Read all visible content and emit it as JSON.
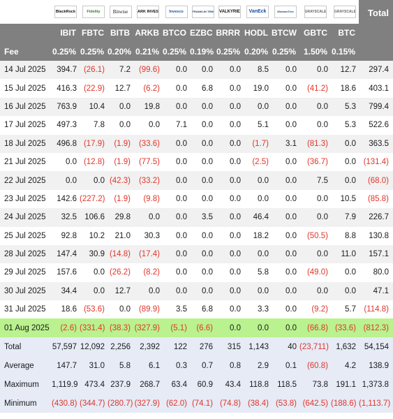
{
  "header": {
    "total_label": "Total",
    "fee_label": "Fee",
    "logos": [
      {
        "icon": "blackrock-logo",
        "text": "BlackRock"
      },
      {
        "icon": "fidelity-logo",
        "text": "Fidelity"
      },
      {
        "icon": "bitwise-logo",
        "text": "Bitwise"
      },
      {
        "icon": "ark-logo",
        "text": "ARK INVEST"
      },
      {
        "icon": "invesco-logo",
        "text": "Invesco"
      },
      {
        "icon": "franklin-templeton-logo",
        "text": "FRANKLIN TEMPLETON"
      },
      {
        "icon": "valkyrie-logo",
        "text": "VALKYRIE"
      },
      {
        "icon": "vaneck-logo",
        "text": "VanEck"
      },
      {
        "icon": "wisdomtree-logo",
        "text": "WisdomTree"
      },
      {
        "icon": "grayscale-logo",
        "text": "GRAYSCALE"
      },
      {
        "icon": "grayscale-logo",
        "text": "GRAYSCALE"
      }
    ],
    "tickers": [
      "IBIT",
      "FBTC",
      "BITB",
      "ARKB",
      "BTCO",
      "EZBC",
      "BRRR",
      "HODL",
      "BTCW",
      "GBTC",
      "BTC"
    ],
    "fees": [
      "0.25%",
      "0.25%",
      "0.20%",
      "0.21%",
      "0.25%",
      "0.19%",
      "0.25%",
      "0.20%",
      "0.25%",
      "1.50%",
      "0.15%"
    ]
  },
  "rows": [
    {
      "date": "14 Jul 2025",
      "values": [
        "394.7",
        "(26.1)",
        "7.2",
        "(99.6)",
        "0.0",
        "0.0",
        "0.0",
        "8.5",
        "0.0",
        "0.0",
        "12.7"
      ],
      "total": "297.4"
    },
    {
      "date": "15 Jul 2025",
      "values": [
        "416.3",
        "(22.9)",
        "12.7",
        "(6.2)",
        "0.0",
        "6.8",
        "0.0",
        "19.0",
        "0.0",
        "(41.2)",
        "18.6"
      ],
      "total": "403.1"
    },
    {
      "date": "16 Jul 2025",
      "values": [
        "763.9",
        "10.4",
        "0.0",
        "19.8",
        "0.0",
        "0.0",
        "0.0",
        "0.0",
        "0.0",
        "0.0",
        "5.3"
      ],
      "total": "799.4"
    },
    {
      "date": "17 Jul 2025",
      "values": [
        "497.3",
        "7.8",
        "0.0",
        "0.0",
        "7.1",
        "0.0",
        "0.0",
        "5.1",
        "0.0",
        "0.0",
        "5.3"
      ],
      "total": "522.6"
    },
    {
      "date": "18 Jul 2025",
      "values": [
        "496.8",
        "(17.9)",
        "(1.9)",
        "(33.6)",
        "0.0",
        "0.0",
        "0.0",
        "(1.7)",
        "3.1",
        "(81.3)",
        "0.0"
      ],
      "total": "363.5"
    },
    {
      "date": "21 Jul 2025",
      "values": [
        "0.0",
        "(12.8)",
        "(1.9)",
        "(77.5)",
        "0.0",
        "0.0",
        "0.0",
        "(2.5)",
        "0.0",
        "(36.7)",
        "0.0"
      ],
      "total": "(131.4)"
    },
    {
      "date": "22 Jul 2025",
      "values": [
        "0.0",
        "0.0",
        "(42.3)",
        "(33.2)",
        "0.0",
        "0.0",
        "0.0",
        "0.0",
        "0.0",
        "7.5",
        "0.0"
      ],
      "total": "(68.0)"
    },
    {
      "date": "23 Jul 2025",
      "values": [
        "142.6",
        "(227.2)",
        "(1.9)",
        "(9.8)",
        "0.0",
        "0.0",
        "0.0",
        "0.0",
        "0.0",
        "0.0",
        "10.5"
      ],
      "total": "(85.8)"
    },
    {
      "date": "24 Jul 2025",
      "values": [
        "32.5",
        "106.6",
        "29.8",
        "0.0",
        "0.0",
        "3.5",
        "0.0",
        "46.4",
        "0.0",
        "0.0",
        "7.9"
      ],
      "total": "226.7"
    },
    {
      "date": "25 Jul 2025",
      "values": [
        "92.8",
        "10.2",
        "21.0",
        "30.3",
        "0.0",
        "0.0",
        "0.0",
        "18.2",
        "0.0",
        "(50.5)",
        "8.8"
      ],
      "total": "130.8"
    },
    {
      "date": "28 Jul 2025",
      "values": [
        "147.4",
        "30.9",
        "(14.8)",
        "(17.4)",
        "0.0",
        "0.0",
        "0.0",
        "0.0",
        "0.0",
        "0.0",
        "11.0"
      ],
      "total": "157.1"
    },
    {
      "date": "29 Jul 2025",
      "values": [
        "157.6",
        "0.0",
        "(26.2)",
        "(8.2)",
        "0.0",
        "0.0",
        "0.0",
        "5.8",
        "0.0",
        "(49.0)",
        "0.0"
      ],
      "total": "80.0"
    },
    {
      "date": "30 Jul 2025",
      "values": [
        "34.4",
        "0.0",
        "12.7",
        "0.0",
        "0.0",
        "0.0",
        "0.0",
        "0.0",
        "0.0",
        "0.0",
        "0.0"
      ],
      "total": "47.1"
    },
    {
      "date": "31 Jul 2025",
      "values": [
        "18.6",
        "(53.6)",
        "0.0",
        "(89.9)",
        "3.5",
        "6.8",
        "0.0",
        "3.3",
        "0.0",
        "(9.2)",
        "5.7"
      ],
      "total": "(114.8)"
    },
    {
      "date": "01 Aug 2025",
      "values": [
        "(2.6)",
        "(331.4)",
        "(38.3)",
        "(327.9)",
        "(5.1)",
        "(6.6)",
        "0.0",
        "0.0",
        "0.0",
        "(66.8)",
        "(33.6)"
      ],
      "total": "(812.3)",
      "highlight": true
    }
  ],
  "stats": [
    {
      "label": "Total",
      "values": [
        "57,597",
        "12,092",
        "2,256",
        "2,392",
        "122",
        "276",
        "315",
        "1,143",
        "40",
        "(23,711)",
        "1,632"
      ],
      "total": "54,154"
    },
    {
      "label": "Average",
      "values": [
        "147.7",
        "31.0",
        "5.8",
        "6.1",
        "0.3",
        "0.7",
        "0.8",
        "2.9",
        "0.1",
        "(60.8)",
        "4.2"
      ],
      "total": "138.9"
    },
    {
      "label": "Maximum",
      "values": [
        "1,119.9",
        "473.4",
        "237.9",
        "268.7",
        "63.4",
        "60.9",
        "43.4",
        "118.8",
        "118.5",
        "73.8",
        "191.1"
      ],
      "total": "1,373.8"
    },
    {
      "label": "Minimum",
      "values": [
        "(430.8)",
        "(344.7)",
        "(280.7)",
        "(327.9)",
        "(62.0)",
        "(74.1)",
        "(74.8)",
        "(38.4)",
        "(53.8)",
        "(642.5)",
        "(188.6)"
      ],
      "total": "(1,113.7)"
    }
  ],
  "colors": {
    "header_bg": "#808080",
    "negative": "#e0352b",
    "highlight_row": "#b9f28e",
    "stats_bg": "#e6ebf6"
  }
}
